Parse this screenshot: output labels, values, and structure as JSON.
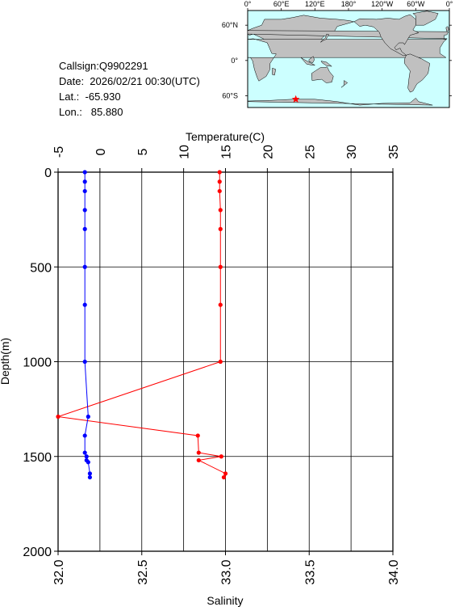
{
  "info": {
    "callsign": "Callsign:Q9902291",
    "date": "Date:  2026/02/21 00:30(UTC)",
    "lat": "Lat.:  -65.930",
    "lon": "Lon.:   85.880"
  },
  "map": {
    "lon_labels": [
      "0°",
      "60°E",
      "120°E",
      "180°",
      "120°W",
      "60°W",
      "0°"
    ],
    "lat_labels": [
      "60°N",
      "0°",
      "60°S"
    ],
    "ocean_color": "#ccffff",
    "land_color": "#c0c0c0",
    "marker": {
      "lat": -65.93,
      "lon": 85.88,
      "color": "#ff0000",
      "icon": "star-icon"
    }
  },
  "chart_data": {
    "type": "line",
    "top_axis_label": "Temperature(C)",
    "bottom_axis_label": "Salinity",
    "ylabel": "Depth(m)",
    "temp_range": [
      -5,
      35
    ],
    "temp_ticks": [
      "-5",
      "0",
      "5",
      "10",
      "15",
      "20",
      "25",
      "30",
      "35"
    ],
    "sal_range": [
      32.0,
      34.0
    ],
    "sal_ticks": [
      "32.0",
      "32.5",
      "33.0",
      "33.5",
      "34.0"
    ],
    "depth_range": [
      0,
      2000
    ],
    "depth_ticks": [
      "0",
      "500",
      "1000",
      "1500",
      "2000"
    ],
    "grid": true,
    "temperature": {
      "color": "#ff0000",
      "depth": [
        0,
        50,
        100,
        200,
        300,
        500,
        700,
        1000,
        1290,
        1390,
        1480,
        1500,
        1520,
        1590,
        1610
      ],
      "values": [
        14.3,
        14.3,
        14.3,
        14.4,
        14.4,
        14.4,
        14.4,
        14.4,
        -5.0,
        11.7,
        11.8,
        14.5,
        11.8,
        15.0,
        14.8
      ]
    },
    "salinity": {
      "color": "#0000ff",
      "depth": [
        0,
        50,
        100,
        200,
        300,
        500,
        700,
        1000,
        1290,
        1390,
        1480,
        1500,
        1520,
        1530,
        1590,
        1610
      ],
      "values": [
        32.16,
        32.16,
        32.16,
        32.16,
        32.16,
        32.16,
        32.16,
        32.16,
        32.18,
        32.16,
        32.16,
        32.17,
        32.17,
        32.18,
        32.19,
        32.19
      ]
    }
  }
}
